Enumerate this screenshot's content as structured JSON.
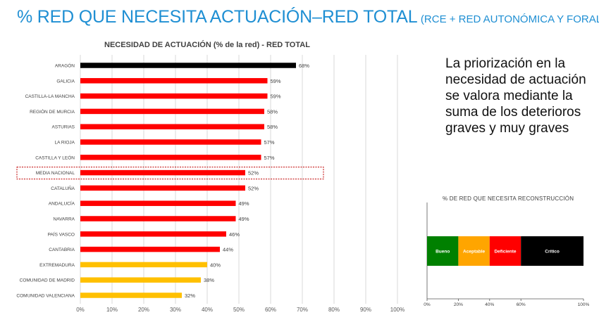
{
  "header": {
    "title": "% RED QUE NECESITA ACTUACIÓN–RED TOTAL",
    "subtitle": "(RCE + RED AUTONÓMICA Y FORAL)"
  },
  "side_text": "La priorización en la necesidad de actuación se valora mediante la suma de los deterioros graves y muy graves",
  "colors": {
    "title": "#1f8fd3",
    "black": "#000000",
    "red": "#ff0000",
    "yellow": "#ffc000",
    "grid": "#d9d9d9",
    "highlight": "#c00000",
    "bueno": "#008000",
    "aceptable": "#ffa500",
    "deficiente": "#ff0000",
    "critico": "#000000"
  },
  "chart_data": [
    {
      "type": "bar",
      "orientation": "horizontal",
      "title": "NECESIDAD DE ACTUACIÓN (% de la red)  - RED TOTAL",
      "xlim": [
        0,
        100
      ],
      "x_ticks": [
        "0%",
        "10%",
        "20%",
        "30%",
        "40%",
        "50%",
        "60%",
        "70%",
        "80%",
        "90%",
        "100%"
      ],
      "grid": true,
      "categories": [
        "ARAGÓN",
        "GALICIA",
        "CASTILLA-LA MANCHA",
        "REGIÓN DE MURCIA",
        "ASTURIAS",
        "LA RIOJA",
        "CASTILLA Y LEÓN",
        "MEDIA NACIONAL",
        "CATALUÑA",
        "ANDALUCÍA",
        "NAVARRA",
        "PAÍS VASCO",
        "CANTABRIA",
        "EXTREMADURA",
        "COMUNIDAD DE MADRID",
        "COMUNIDAD VALENCIANA"
      ],
      "values": [
        68,
        59,
        59,
        58,
        58,
        57,
        57,
        52,
        52,
        49,
        49,
        46,
        44,
        40,
        38,
        32
      ],
      "labels": [
        "68%",
        "59%",
        "59%",
        "58%",
        "58%",
        "57%",
        "57%",
        "52%",
        "52%",
        "49%",
        "49%",
        "46%",
        "44%",
        "40%",
        "38%",
        "32%"
      ],
      "bar_colors": [
        "#000000",
        "#ff0000",
        "#ff0000",
        "#ff0000",
        "#ff0000",
        "#ff0000",
        "#ff0000",
        "#ff0000",
        "#ff0000",
        "#ff0000",
        "#ff0000",
        "#ff0000",
        "#ff0000",
        "#ffc000",
        "#ffc000",
        "#ffc000"
      ],
      "highlighted_category": "MEDIA NACIONAL"
    },
    {
      "type": "bar",
      "orientation": "horizontal",
      "stacked": true,
      "title": "% DE RED QUE NECESITA RECONSTRUCCIÓN",
      "xlim": [
        0,
        100
      ],
      "x_ticks": [
        "0%",
        "20%",
        "40%",
        "60%",
        "100%"
      ],
      "x_tick_values": [
        0,
        20,
        40,
        60,
        100
      ],
      "segments": [
        {
          "name": "Bueno",
          "start": 0,
          "end": 20,
          "color": "#008000"
        },
        {
          "name": "Aceptable",
          "start": 20,
          "end": 40,
          "color": "#ffa500"
        },
        {
          "name": "Deficiente",
          "start": 40,
          "end": 60,
          "color": "#ff0000"
        },
        {
          "name": "Crítico",
          "start": 60,
          "end": 100,
          "color": "#000000"
        }
      ]
    }
  ]
}
